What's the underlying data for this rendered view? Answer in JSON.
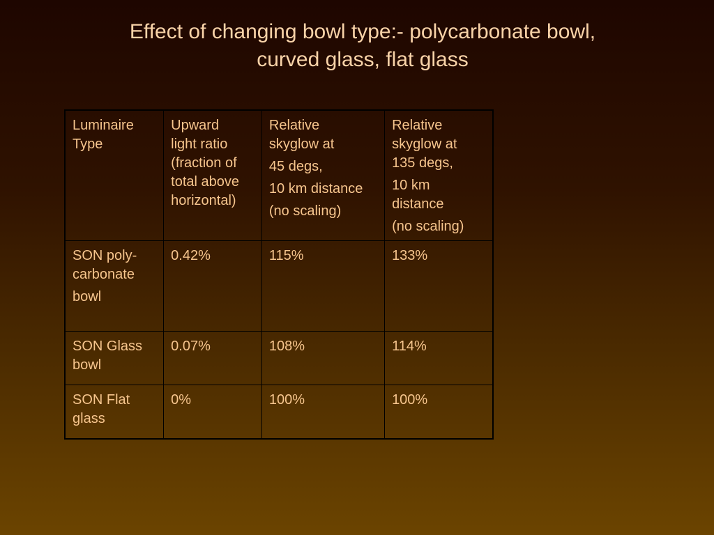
{
  "title": {
    "line1": "Effect of changing bowl type:-  polycarbonate bowl,",
    "line2": "curved glass, flat glass"
  },
  "table": {
    "headers": {
      "c1": [
        "Luminaire",
        "Type"
      ],
      "c2": [
        "Upward",
        "light ratio",
        "(fraction of",
        "total above",
        "horizontal)"
      ],
      "c3": [
        "Relative",
        "skyglow at",
        "45 degs,",
        "10 km distance",
        "(no scaling)"
      ],
      "c4": [
        "Relative",
        "skyglow at",
        "135 degs,",
        "10 km",
        "distance",
        "(no scaling)"
      ]
    },
    "rows": [
      {
        "type": [
          "SON poly-",
          "carbonate",
          "bowl"
        ],
        "ratio": "0.42%",
        "skyglow45": "115%",
        "skyglow135": "133%"
      },
      {
        "type": [
          "SON Glass",
          "bowl"
        ],
        "ratio": "0.07%",
        "skyglow45": "108%",
        "skyglow135": "114%"
      },
      {
        "type": [
          "SON Flat",
          "glass"
        ],
        "ratio": "0%",
        "skyglow45": "100%",
        "skyglow135": "100%"
      }
    ]
  }
}
